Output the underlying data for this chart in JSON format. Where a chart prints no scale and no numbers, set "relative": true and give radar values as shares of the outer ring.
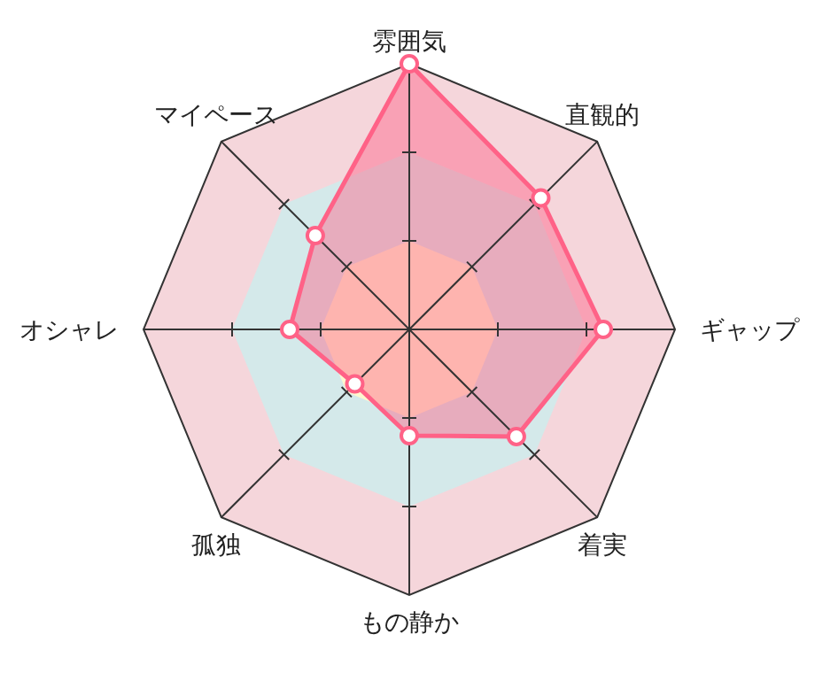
{
  "chart_data": {
    "type": "radar",
    "relative": true,
    "marker": "circle",
    "line_style": "solid",
    "grid": true,
    "categories": [
      "雰囲気",
      "直観的",
      "ギャップ",
      "着実",
      "もの静か",
      "孤独",
      "オシャレ",
      "マイペース"
    ],
    "series": [
      {
        "color": "#ff6287",
        "values": [
          1.0,
          0.7,
          0.73,
          0.57,
          0.4,
          0.29,
          0.45,
          0.5
        ]
      }
    ]
  }
}
